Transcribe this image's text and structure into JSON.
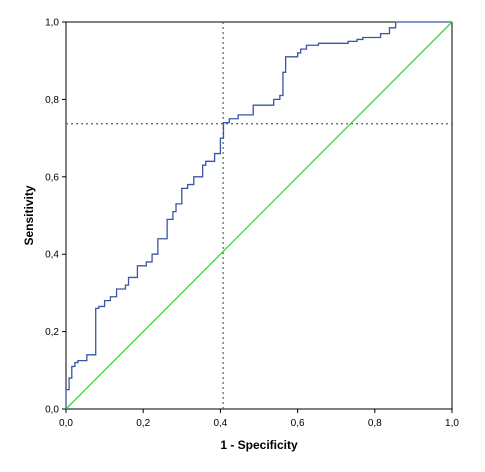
{
  "chart_data": {
    "type": "line",
    "title": "",
    "xlabel": "1 - Specificity",
    "ylabel": "Sensitivity",
    "xlim": [
      0,
      1
    ],
    "ylim": [
      0,
      1
    ],
    "grid": false,
    "legend": "none",
    "x_ticks": [
      "0,0",
      "0,2",
      "0,4",
      "0,6",
      "0,8",
      "1,0"
    ],
    "y_ticks": [
      "0,0",
      "0,2",
      "0,4",
      "0,6",
      "0,8",
      "1,0"
    ],
    "x_tick_values": [
      0,
      0.2,
      0.4,
      0.6,
      0.8,
      1.0
    ],
    "y_tick_values": [
      0,
      0.2,
      0.4,
      0.6,
      0.8,
      1.0
    ],
    "series": [
      {
        "role": "roc-curve",
        "color": "#3b55a6",
        "x": [
          0,
          0,
          0.008,
          0.008,
          0.015,
          0.015,
          0.023,
          0.023,
          0.031,
          0.031,
          0.054,
          0.054,
          0.077,
          0.077,
          0.085,
          0.085,
          0.1,
          0.1,
          0.115,
          0.115,
          0.131,
          0.131,
          0.154,
          0.154,
          0.162,
          0.162,
          0.185,
          0.185,
          0.208,
          0.208,
          0.223,
          0.223,
          0.238,
          0.238,
          0.262,
          0.262,
          0.277,
          0.277,
          0.285,
          0.285,
          0.3,
          0.3,
          0.315,
          0.315,
          0.331,
          0.331,
          0.354,
          0.354,
          0.362,
          0.362,
          0.385,
          0.385,
          0.4,
          0.4,
          0.408,
          0.408,
          0.423,
          0.423,
          0.446,
          0.446,
          0.485,
          0.485,
          0.5,
          0.5,
          0.538,
          0.538,
          0.554,
          0.554,
          0.562,
          0.562,
          0.569,
          0.569,
          0.6,
          0.6,
          0.608,
          0.608,
          0.623,
          0.623,
          0.654,
          0.654,
          0.731,
          0.731,
          0.754,
          0.754,
          0.769,
          0.769,
          0.815,
          0.815,
          0.838,
          0.838,
          0.854,
          0.854,
          1.0
        ],
        "y": [
          0,
          0.05,
          0.05,
          0.08,
          0.08,
          0.11,
          0.11,
          0.12,
          0.12,
          0.125,
          0.125,
          0.14,
          0.14,
          0.26,
          0.26,
          0.265,
          0.265,
          0.28,
          0.28,
          0.29,
          0.29,
          0.31,
          0.31,
          0.32,
          0.32,
          0.34,
          0.34,
          0.37,
          0.37,
          0.38,
          0.38,
          0.4,
          0.4,
          0.44,
          0.44,
          0.49,
          0.49,
          0.51,
          0.51,
          0.53,
          0.53,
          0.57,
          0.57,
          0.58,
          0.58,
          0.6,
          0.6,
          0.63,
          0.63,
          0.64,
          0.64,
          0.66,
          0.66,
          0.7,
          0.7,
          0.74,
          0.74,
          0.75,
          0.75,
          0.76,
          0.76,
          0.785,
          0.785,
          0.785,
          0.785,
          0.8,
          0.8,
          0.81,
          0.81,
          0.87,
          0.87,
          0.91,
          0.91,
          0.92,
          0.92,
          0.93,
          0.93,
          0.94,
          0.94,
          0.945,
          0.945,
          0.95,
          0.95,
          0.955,
          0.955,
          0.96,
          0.96,
          0.97,
          0.97,
          0.985,
          0.985,
          1.0,
          1.0
        ]
      },
      {
        "role": "reference-line",
        "color": "#33dd33",
        "x": [
          0,
          1
        ],
        "y": [
          0,
          1
        ]
      }
    ],
    "cutoff": {
      "x": 0.407,
      "y": 0.737,
      "color": "#3d6e5a",
      "style": "dotted"
    }
  }
}
